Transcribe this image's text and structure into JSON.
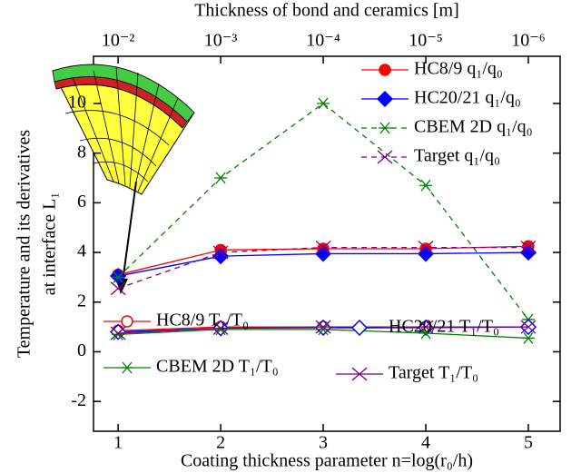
{
  "chart_data": {
    "type": "line",
    "top_axis_label": "Thickness of bond and ceramics [m]",
    "x_label": "Coating thickness parameter n=log(r₀/h)",
    "y_label": [
      "Temperature and its derivatives",
      "at interface L₁"
    ],
    "x": [
      1,
      2,
      3,
      4,
      5
    ],
    "xlim": [
      0.76,
      5.31
    ],
    "xticks": [
      1,
      2,
      3,
      4,
      5
    ],
    "top_xticks": [
      {
        "value": 1,
        "label": "10⁻²"
      },
      {
        "value": 2,
        "label": "10⁻³"
      },
      {
        "value": 3,
        "label": "10⁻⁴"
      },
      {
        "value": 4,
        "label": "10⁻⁵"
      },
      {
        "value": 5,
        "label": "10⁻⁶"
      }
    ],
    "ylim": [
      -3.2,
      11.9
    ],
    "yticks": [
      -2,
      0,
      2,
      4,
      6,
      8,
      10
    ],
    "series": [
      {
        "name": "HC8/9 q₁/q₀",
        "color": "#ff0000",
        "marker": "circle",
        "filled": true,
        "dashed": false,
        "values": [
          3.1,
          4.1,
          4.15,
          4.15,
          4.25
        ]
      },
      {
        "name": "HC20/21 q₁/q₀",
        "color": "#0000ff",
        "marker": "diamond",
        "filled": true,
        "dashed": false,
        "values": [
          3.05,
          3.85,
          3.95,
          3.95,
          4.0
        ]
      },
      {
        "name": "CBEM 2D q₁/q₀",
        "color": "#008000",
        "marker": "star",
        "filled": true,
        "dashed": true,
        "values": [
          3.0,
          7.0,
          10.0,
          6.7,
          1.3
        ]
      },
      {
        "name": "Target q₁/q₀",
        "color": "#800080",
        "marker": "x",
        "filled": true,
        "dashed": true,
        "values": [
          2.55,
          4.0,
          4.2,
          4.2,
          4.2
        ]
      },
      {
        "name": "HC8/9 T₁/T₀",
        "color": "#ff0000",
        "marker": "circle",
        "filled": false,
        "dashed": false,
        "values": [
          0.85,
          1.0,
          1.0,
          1.0,
          1.0
        ]
      },
      {
        "name": "HC20/21 T₁/T₀",
        "color": "#0000ff",
        "marker": "diamond",
        "filled": false,
        "dashed": false,
        "values": [
          0.8,
          0.95,
          0.97,
          0.97,
          1.0
        ]
      },
      {
        "name": "CBEM 2D T₁/T₀",
        "color": "#008000",
        "marker": "star",
        "filled": true,
        "dashed": false,
        "values": [
          0.7,
          0.9,
          0.9,
          0.75,
          0.55
        ]
      },
      {
        "name": "Target T₁/T₀",
        "color": "#800080",
        "marker": "x",
        "filled": true,
        "dashed": false,
        "values": [
          0.75,
          0.95,
          1.0,
          1.0,
          1.0
        ]
      }
    ]
  }
}
